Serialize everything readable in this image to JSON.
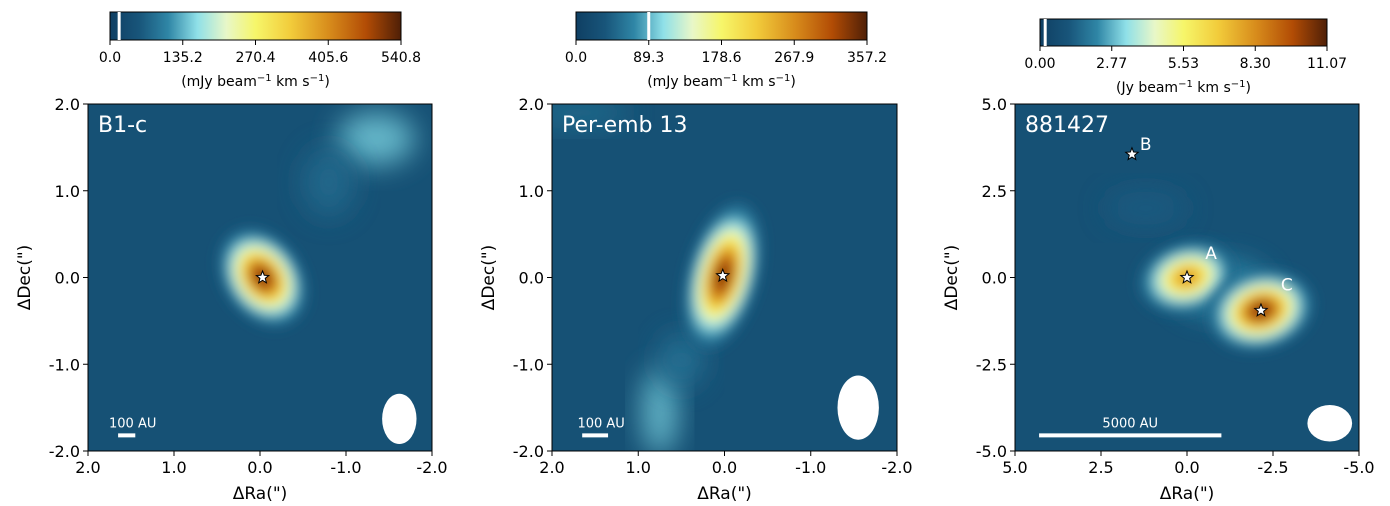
{
  "chart_data": [
    {
      "type": "heatmap",
      "panel_label": "B1-c",
      "xlabel": "ΔRa(\")",
      "ylabel": "ΔDec(\")",
      "xlim": [
        2.0,
        -2.0
      ],
      "ylim": [
        -2.0,
        2.0
      ],
      "xticks": [
        {
          "v": 2.0,
          "label": "2.0"
        },
        {
          "v": 1.0,
          "label": "1.0"
        },
        {
          "v": 0.0,
          "label": "0.0"
        },
        {
          "v": -1.0,
          "label": "-1.0"
        },
        {
          "v": -2.0,
          "label": "-2.0"
        }
      ],
      "yticks": [
        {
          "v": 2.0,
          "label": "2.0"
        },
        {
          "v": 1.0,
          "label": "1.0"
        },
        {
          "v": 0.0,
          "label": "0.0"
        },
        {
          "v": -1.0,
          "label": "-1.0"
        },
        {
          "v": -2.0,
          "label": "-2.0"
        }
      ],
      "colorbar": {
        "range": [
          0.0,
          540.8
        ],
        "ticks": [
          "0.0",
          "135.2",
          "270.4",
          "405.6",
          "540.8"
        ],
        "label": "(mJy beam$^{-1}$ km s$^{-1}$)",
        "label_main": "(mJy beam",
        "label_exp": "−1",
        "label_tail": " km s",
        "label_exp2": "−1",
        "label_end": ")",
        "contour_mark": 17.0
      },
      "sources": [
        {
          "name": "",
          "x": -0.03,
          "y": 0.0,
          "peak": 540.8,
          "sx": 0.22,
          "sy": 0.3,
          "rot": -35
        }
      ],
      "diffuse": [
        {
          "x": -1.35,
          "y": 1.6,
          "sx": 0.45,
          "sy": 0.3,
          "amp": 0.18
        },
        {
          "x": -0.8,
          "y": 1.1,
          "sx": 0.3,
          "sy": 0.4,
          "amp": 0.06
        }
      ],
      "beam": {
        "x": -1.62,
        "y": -1.63,
        "w": 0.4,
        "h": 0.58
      },
      "scalebar": {
        "label": "100 AU",
        "x0": 1.65,
        "x1": 1.45,
        "y": -1.82
      }
    },
    {
      "type": "heatmap",
      "panel_label": "Per-emb 13",
      "xlabel": "ΔRa(\")",
      "ylabel": "ΔDec(\")",
      "xlim": [
        2.0,
        -2.0
      ],
      "ylim": [
        -2.0,
        2.0
      ],
      "xticks": [
        {
          "v": 2.0,
          "label": "2.0"
        },
        {
          "v": 1.0,
          "label": "1.0"
        },
        {
          "v": 0.0,
          "label": "0.0"
        },
        {
          "v": -1.0,
          "label": "-1.0"
        },
        {
          "v": -2.0,
          "label": "-2.0"
        }
      ],
      "yticks": [
        {
          "v": 2.0,
          "label": "2.0"
        },
        {
          "v": 1.0,
          "label": "1.0"
        },
        {
          "v": 0.0,
          "label": "0.0"
        },
        {
          "v": -1.0,
          "label": "-1.0"
        },
        {
          "v": -2.0,
          "label": "-2.0"
        }
      ],
      "colorbar": {
        "range": [
          0.0,
          357.2
        ],
        "ticks": [
          "0.0",
          "89.3",
          "178.6",
          "267.9",
          "357.2"
        ],
        "label": "(mJy beam$^{-1}$ km s$^{-1}$)",
        "label_main": "(mJy beam",
        "label_exp": "−1",
        "label_tail": " km s",
        "label_exp2": "−1",
        "label_end": ")",
        "contour_mark": 89.3
      },
      "sources": [
        {
          "name": "",
          "x": 0.02,
          "y": 0.02,
          "peak": 357.2,
          "sx": 0.2,
          "sy": 0.42,
          "rot": 15
        }
      ],
      "diffuse": [
        {
          "x": 0.75,
          "y": -1.55,
          "sx": 0.2,
          "sy": 0.5,
          "amp": 0.18
        },
        {
          "x": 0.5,
          "y": -0.95,
          "sx": 0.25,
          "sy": 0.3,
          "amp": 0.08
        },
        {
          "x": 1.7,
          "y": 1.9,
          "sx": 0.6,
          "sy": 0.15,
          "amp": 0.07
        }
      ],
      "beam": {
        "x": -1.55,
        "y": -1.5,
        "w": 0.48,
        "h": 0.74
      },
      "scalebar": {
        "label": "100 AU",
        "x0": 1.65,
        "x1": 1.35,
        "y": -1.82
      }
    },
    {
      "type": "heatmap",
      "panel_label": "881427",
      "xlabel": "ΔRa(\")",
      "ylabel": "ΔDec(\")",
      "xlim": [
        5.0,
        -5.0
      ],
      "ylim": [
        -5.0,
        5.0
      ],
      "xticks": [
        {
          "v": 5.0,
          "label": "5.0"
        },
        {
          "v": 2.5,
          "label": "2.5"
        },
        {
          "v": 0.0,
          "label": "0.0"
        },
        {
          "v": -2.5,
          "label": "-2.5"
        },
        {
          "v": -5.0,
          "label": "-5.0"
        }
      ],
      "yticks": [
        {
          "v": 5.0,
          "label": "5.0"
        },
        {
          "v": 2.5,
          "label": "2.5"
        },
        {
          "v": 0.0,
          "label": "0.0"
        },
        {
          "v": -2.5,
          "label": "-2.5"
        },
        {
          "v": -5.0,
          "label": "-5.0"
        }
      ],
      "colorbar": {
        "range": [
          0.0,
          11.07
        ],
        "ticks": [
          "0.00",
          "2.77",
          "5.53",
          "8.30",
          "11.07"
        ],
        "label": "(Jy beam$^{-1}$ km s$^{-1}$)",
        "label_main": "(Jy beam",
        "label_exp": "−1",
        "label_tail": " km s",
        "label_exp2": "−1",
        "label_end": ")",
        "contour_mark": 0.2
      },
      "sources": [
        {
          "name": "A",
          "x": 0.0,
          "y": 0.0,
          "peak": 8.6,
          "sx": 0.7,
          "sy": 0.5,
          "rot": -15
        },
        {
          "name": "C",
          "x": -2.15,
          "y": -0.95,
          "peak": 11.07,
          "sx": 0.75,
          "sy": 0.55,
          "rot": -15
        },
        {
          "name": "B",
          "x": 1.6,
          "y": 3.55,
          "peak": 0.0,
          "sx": 0.0,
          "sy": 0.0,
          "rot": 0
        }
      ],
      "diffuse": [
        {
          "x": 1.2,
          "y": 2.0,
          "sx": 1.2,
          "sy": 0.5,
          "amp": 0.035
        },
        {
          "x": -1.0,
          "y": -0.3,
          "sx": 1.4,
          "sy": 0.8,
          "amp": 0.12
        }
      ],
      "source_labels": [
        {
          "text": "A",
          "x": -0.7,
          "y": 0.7
        },
        {
          "text": "C",
          "x": -2.9,
          "y": -0.2
        },
        {
          "text": "B",
          "x": 1.2,
          "y": 3.85
        }
      ],
      "beam": {
        "x": -4.15,
        "y": -4.2,
        "w": 1.3,
        "h": 1.05
      },
      "scalebar": {
        "label": "5000 AU",
        "x0": 4.3,
        "x1": -1.0,
        "y": -4.55
      }
    }
  ]
}
